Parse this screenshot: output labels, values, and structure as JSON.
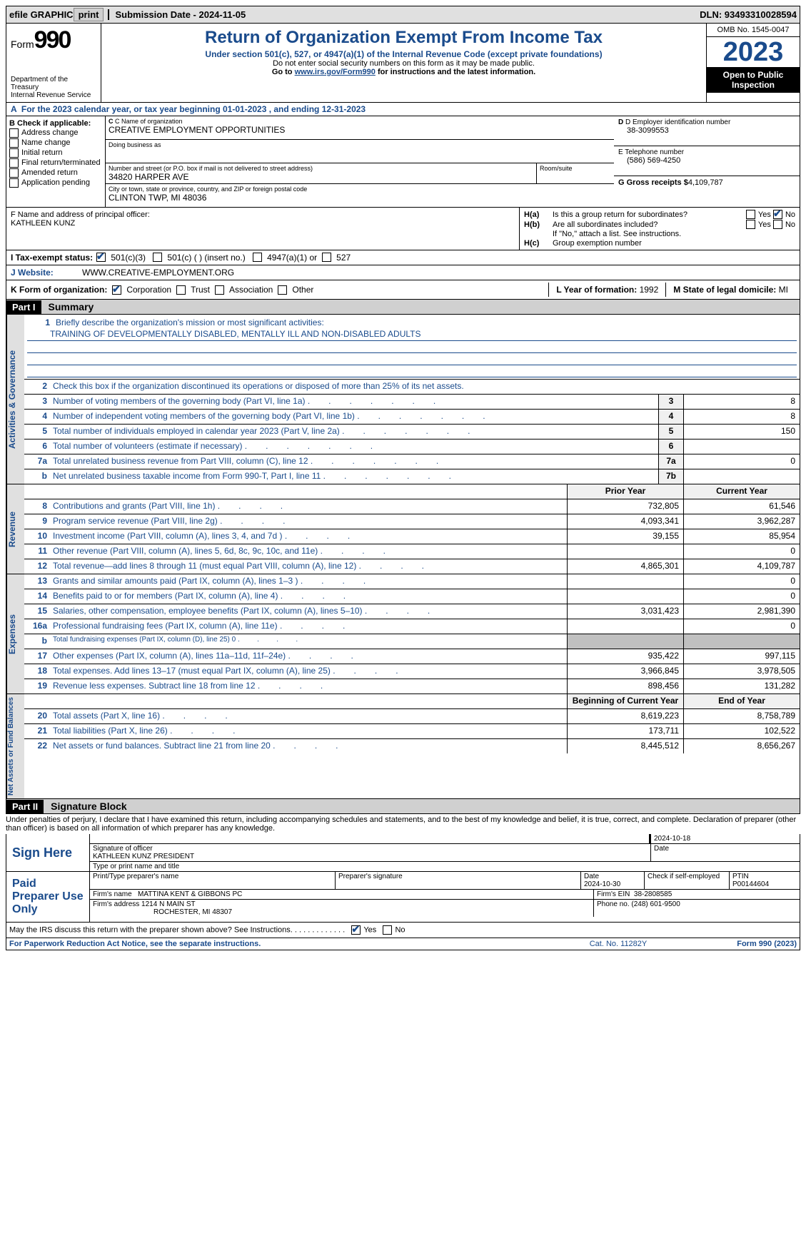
{
  "topbar": {
    "efile_label": "efile GRAPHIC",
    "print_btn": "print",
    "submission_label": "Submission Date - 2024-11-05",
    "dln": "DLN: 93493310028594"
  },
  "header": {
    "form_label": "Form",
    "form_num": "990",
    "dept": "Department of the Treasury\nInternal Revenue Service",
    "title": "Return of Organization Exempt From Income Tax",
    "sub": "Under section 501(c), 527, or 4947(a)(1) of the Internal Revenue Code (except private foundations)",
    "note1": "Do not enter social security numbers on this form as it may be made public.",
    "note2_pre": "Go to ",
    "note2_link": "www.irs.gov/Form990",
    "note2_post": " for instructions and the latest information.",
    "omb": "OMB No. 1545-0047",
    "year": "2023",
    "inspect": "Open to Public Inspection"
  },
  "line_a": "For the 2023 calendar year, or tax year beginning 01-01-2023   , and ending 12-31-2023",
  "block_b": {
    "label": "B Check if applicable:",
    "items": [
      "Address change",
      "Name change",
      "Initial return",
      "Final return/terminated",
      "Amended return",
      "Application pending"
    ]
  },
  "block_c": {
    "name_label": "C Name of organization",
    "name": "CREATIVE EMPLOYMENT OPPORTUNITIES",
    "dba_label": "Doing business as",
    "street_label": "Number and street (or P.O. box if mail is not delivered to street address)",
    "street": "34820 HARPER AVE",
    "room_label": "Room/suite",
    "city_label": "City or town, state or province, country, and ZIP or foreign postal code",
    "city": "CLINTON TWP, MI  48036"
  },
  "block_d": {
    "ein_label": "D Employer identification number",
    "ein": "38-3099553",
    "phone_label": "E Telephone number",
    "phone": "(586) 569-4250",
    "gross_label": "G Gross receipts $",
    "gross": "4,109,787"
  },
  "block_f": {
    "label": "F  Name and address of principal officer:",
    "name": "KATHLEEN KUNZ"
  },
  "block_h": {
    "ha_label": "H(a)",
    "ha_text": "Is this a group return for subordinates?",
    "hb_label": "H(b)",
    "hb_text": "Are all subordinates included?",
    "hb_note": "If \"No,\" attach a list. See instructions.",
    "hc_label": "H(c)",
    "hc_text": "Group exemption number",
    "yes": "Yes",
    "no": "No"
  },
  "line_i": {
    "label": "I   Tax-exempt status:",
    "opt1": "501(c)(3)",
    "opt2": "501(c) (  ) (insert no.)",
    "opt3": "4947(a)(1) or",
    "opt4": "527"
  },
  "line_j": {
    "label": "J   Website:",
    "value": "WWW.CREATIVE-EMPLOYMENT.ORG"
  },
  "line_k": {
    "label": "K Form of organization:",
    "opts": [
      "Corporation",
      "Trust",
      "Association",
      "Other"
    ]
  },
  "line_l": {
    "label": "L Year of formation:",
    "value": "1992"
  },
  "line_m": {
    "label": "M State of legal domicile:",
    "value": "MI"
  },
  "part1": {
    "header": "Part I",
    "title": "Summary",
    "line1_label": "Briefly describe the organization's mission or most significant activities:",
    "line1_text": "TRAINING OF DEVELOPMENTALLY DISABLED, MENTALLY ILL AND NON-DISABLED ADULTS",
    "line2": "Check this box      if the organization discontinued its operations or disposed of more than 25% of its net assets.",
    "prior_year_h": "Prior Year",
    "current_year_h": "Current Year",
    "begin_h": "Beginning of Current Year",
    "end_h": "End of Year",
    "rows_gov": [
      {
        "n": "3",
        "t": "Number of voting members of the governing body (Part VI, line 1a)",
        "lbl": "3",
        "v": "8"
      },
      {
        "n": "4",
        "t": "Number of independent voting members of the governing body (Part VI, line 1b)",
        "lbl": "4",
        "v": "8"
      },
      {
        "n": "5",
        "t": "Total number of individuals employed in calendar year 2023 (Part V, line 2a)",
        "lbl": "5",
        "v": "150"
      },
      {
        "n": "6",
        "t": "Total number of volunteers (estimate if necessary)",
        "lbl": "6",
        "v": ""
      },
      {
        "n": "7a",
        "t": "Total unrelated business revenue from Part VIII, column (C), line 12",
        "lbl": "7a",
        "v": "0"
      },
      {
        "n": "b",
        "t": "Net unrelated business taxable income from Form 990-T, Part I, line 11",
        "lbl": "7b",
        "v": ""
      }
    ],
    "rows_rev": [
      {
        "n": "8",
        "t": "Contributions and grants (Part VIII, line 1h)",
        "p": "732,805",
        "c": "61,546"
      },
      {
        "n": "9",
        "t": "Program service revenue (Part VIII, line 2g)",
        "p": "4,093,341",
        "c": "3,962,287"
      },
      {
        "n": "10",
        "t": "Investment income (Part VIII, column (A), lines 3, 4, and 7d )",
        "p": "39,155",
        "c": "85,954"
      },
      {
        "n": "11",
        "t": "Other revenue (Part VIII, column (A), lines 5, 6d, 8c, 9c, 10c, and 11e)",
        "p": "",
        "c": "0"
      },
      {
        "n": "12",
        "t": "Total revenue—add lines 8 through 11 (must equal Part VIII, column (A), line 12)",
        "p": "4,865,301",
        "c": "4,109,787"
      }
    ],
    "rows_exp": [
      {
        "n": "13",
        "t": "Grants and similar amounts paid (Part IX, column (A), lines 1–3 )",
        "p": "",
        "c": "0"
      },
      {
        "n": "14",
        "t": "Benefits paid to or for members (Part IX, column (A), line 4)",
        "p": "",
        "c": "0"
      },
      {
        "n": "15",
        "t": "Salaries, other compensation, employee benefits (Part IX, column (A), lines 5–10)",
        "p": "3,031,423",
        "c": "2,981,390"
      },
      {
        "n": "16a",
        "t": "Professional fundraising fees (Part IX, column (A), line 11e)",
        "p": "",
        "c": "0"
      },
      {
        "n": "b",
        "t": "Total fundraising expenses (Part IX, column (D), line 25) 0",
        "p": "grey",
        "c": "grey",
        "small": true
      },
      {
        "n": "17",
        "t": "Other expenses (Part IX, column (A), lines 11a–11d, 11f–24e)",
        "p": "935,422",
        "c": "997,115"
      },
      {
        "n": "18",
        "t": "Total expenses. Add lines 13–17 (must equal Part IX, column (A), line 25)",
        "p": "3,966,845",
        "c": "3,978,505"
      },
      {
        "n": "19",
        "t": "Revenue less expenses. Subtract line 18 from line 12",
        "p": "898,456",
        "c": "131,282"
      }
    ],
    "rows_net": [
      {
        "n": "20",
        "t": "Total assets (Part X, line 16)",
        "p": "8,619,223",
        "c": "8,758,789"
      },
      {
        "n": "21",
        "t": "Total liabilities (Part X, line 26)",
        "p": "173,711",
        "c": "102,522"
      },
      {
        "n": "22",
        "t": "Net assets or fund balances. Subtract line 21 from line 20",
        "p": "8,445,512",
        "c": "8,656,267"
      }
    ],
    "vlabels": {
      "gov": "Activities & Governance",
      "rev": "Revenue",
      "exp": "Expenses",
      "net": "Net Assets or Fund Balances"
    }
  },
  "part2": {
    "header": "Part II",
    "title": "Signature Block",
    "penalties": "Under penalties of perjury, I declare that I have examined this return, including accompanying schedules and statements, and to the best of my knowledge and belief, it is true, correct, and complete. Declaration of preparer (other than officer) is based on all information of which preparer has any knowledge."
  },
  "sign": {
    "here": "Sign Here",
    "sig_label": "Signature of officer",
    "date_label": "Date",
    "date": "2024-10-18",
    "name": "KATHLEEN KUNZ PRESIDENT",
    "name_label": "Type or print name and title"
  },
  "preparer": {
    "label": "Paid Preparer Use Only",
    "print_label": "Print/Type preparer's name",
    "sig_label": "Preparer's signature",
    "date_label": "Date",
    "date": "2024-10-30",
    "self_label": "Check       if self-employed",
    "ptin_label": "PTIN",
    "ptin": "P00144604",
    "firm_name_label": "Firm's name",
    "firm_name": "MATTINA KENT & GIBBONS PC",
    "firm_ein_label": "Firm's EIN",
    "firm_ein": "38-2808585",
    "firm_addr_label": "Firm's address",
    "firm_addr1": "1214 N MAIN ST",
    "firm_addr2": "ROCHESTER, MI  48307",
    "firm_phone_label": "Phone no.",
    "firm_phone": "(248) 601-9500"
  },
  "disclose": {
    "text": "May the IRS discuss this return with the preparer shown above? See Instructions.",
    "yes": "Yes",
    "no": "No"
  },
  "footer": {
    "left": "For Paperwork Reduction Act Notice, see the separate instructions.",
    "mid": "Cat. No. 11282Y",
    "right_pre": "Form ",
    "right_num": "990",
    "right_post": " (2023)"
  }
}
